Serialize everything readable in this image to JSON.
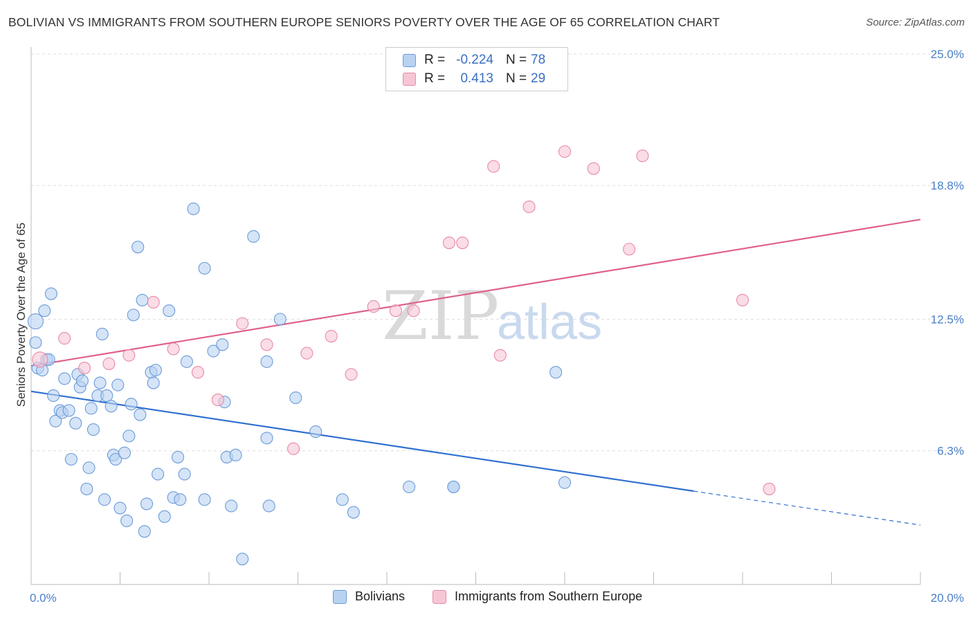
{
  "title": "BOLIVIAN VS IMMIGRANTS FROM SOUTHERN EUROPE SENIORS POVERTY OVER THE AGE OF 65 CORRELATION CHART",
  "source": "Source: ZipAtlas.com",
  "watermark": {
    "zip": "ZIP",
    "atlas": "atlas"
  },
  "colors": {
    "blue_fill": "#b9d2f2",
    "blue_stroke": "#6b9bd8",
    "blue_line": "#2f6fd0",
    "pink_fill": "#f7c6d5",
    "pink_stroke": "#e88aa8",
    "pink_line": "#e0608a",
    "axis_text": "#4a7fc8"
  },
  "legend": {
    "rows": [
      {
        "r_label": "R =",
        "r_value": "-0.224",
        "n_label": "N =",
        "n_value": "78"
      },
      {
        "r_label": "R =",
        "r_value": "0.413",
        "n_label": "N =",
        "n_value": "29"
      }
    ]
  },
  "bottom_legend": {
    "items": [
      "Bolivians",
      "Immigrants from Southern Europe"
    ]
  },
  "chart_data": {
    "type": "scatter",
    "title": "BOLIVIAN VS IMMIGRANTS FROM SOUTHERN EUROPE SENIORS POVERTY OVER THE AGE OF 65 CORRELATION CHART",
    "xlabel": "",
    "ylabel": "Seniors Poverty Over the Age of 65",
    "xlim": [
      0,
      20
    ],
    "ylim": [
      0,
      25
    ],
    "x_tick_labels": [
      "0.0%",
      "20.0%"
    ],
    "y_ticks": [
      6.3,
      12.5,
      18.8,
      25.0
    ],
    "y_tick_labels": [
      "6.3%",
      "12.5%",
      "18.8%",
      "25.0%"
    ],
    "grid": true,
    "series": [
      {
        "name": "Bolivians",
        "r": -0.224,
        "n": 78,
        "trend": {
          "x0": 0,
          "y0": 9.1,
          "x1": 14.9,
          "y1": 4.4,
          "dash_to_x": 20,
          "dash_to_y": 2.8
        },
        "points": [
          [
            0.1,
            12.4
          ],
          [
            0.1,
            11.4
          ],
          [
            0.15,
            10.2
          ],
          [
            0.25,
            10.1
          ],
          [
            0.35,
            10.6
          ],
          [
            0.4,
            10.6
          ],
          [
            0.3,
            12.9
          ],
          [
            0.45,
            13.7
          ],
          [
            0.5,
            8.9
          ],
          [
            0.55,
            7.7
          ],
          [
            0.65,
            8.2
          ],
          [
            0.7,
            8.1
          ],
          [
            0.75,
            9.7
          ],
          [
            0.85,
            8.2
          ],
          [
            0.9,
            5.9
          ],
          [
            1.0,
            7.6
          ],
          [
            1.05,
            9.9
          ],
          [
            1.1,
            9.3
          ],
          [
            1.15,
            9.6
          ],
          [
            1.25,
            4.5
          ],
          [
            1.3,
            5.5
          ],
          [
            1.35,
            8.3
          ],
          [
            1.4,
            7.3
          ],
          [
            1.5,
            8.9
          ],
          [
            1.55,
            9.5
          ],
          [
            1.6,
            11.8
          ],
          [
            1.65,
            4.0
          ],
          [
            1.7,
            8.9
          ],
          [
            1.8,
            8.4
          ],
          [
            1.85,
            6.1
          ],
          [
            1.9,
            5.9
          ],
          [
            1.95,
            9.4
          ],
          [
            2.0,
            3.6
          ],
          [
            2.1,
            6.2
          ],
          [
            2.15,
            3.0
          ],
          [
            2.2,
            7.0
          ],
          [
            2.25,
            8.5
          ],
          [
            2.3,
            12.7
          ],
          [
            2.4,
            15.9
          ],
          [
            2.45,
            8.0
          ],
          [
            2.5,
            13.4
          ],
          [
            2.55,
            2.5
          ],
          [
            2.6,
            3.8
          ],
          [
            2.7,
            10.0
          ],
          [
            2.75,
            9.5
          ],
          [
            2.8,
            10.1
          ],
          [
            2.85,
            5.2
          ],
          [
            3.0,
            3.2
          ],
          [
            3.1,
            12.9
          ],
          [
            3.2,
            4.1
          ],
          [
            3.3,
            6.0
          ],
          [
            3.35,
            4.0
          ],
          [
            3.45,
            5.2
          ],
          [
            3.5,
            10.5
          ],
          [
            3.65,
            17.7
          ],
          [
            3.9,
            14.9
          ],
          [
            3.9,
            4.0
          ],
          [
            4.1,
            11.0
          ],
          [
            4.3,
            11.3
          ],
          [
            4.35,
            8.6
          ],
          [
            4.4,
            6.0
          ],
          [
            4.5,
            3.7
          ],
          [
            4.6,
            6.1
          ],
          [
            4.75,
            1.2
          ],
          [
            5.0,
            16.4
          ],
          [
            5.3,
            6.9
          ],
          [
            5.3,
            10.5
          ],
          [
            5.35,
            3.7
          ],
          [
            5.6,
            12.5
          ],
          [
            5.95,
            8.8
          ],
          [
            6.4,
            7.2
          ],
          [
            7.0,
            4.0
          ],
          [
            7.25,
            3.4
          ],
          [
            8.5,
            4.6
          ],
          [
            9.5,
            4.6
          ],
          [
            11.8,
            10.0
          ],
          [
            12.0,
            4.8
          ],
          [
            9.5,
            4.6
          ]
        ]
      },
      {
        "name": "Immigrants from Southern Europe",
        "r": 0.413,
        "n": 29,
        "trend": {
          "x0": 0,
          "y0": 10.3,
          "x1": 20,
          "y1": 17.2
        },
        "points": [
          [
            0.2,
            10.6
          ],
          [
            0.75,
            11.6
          ],
          [
            1.2,
            10.2
          ],
          [
            1.75,
            10.4
          ],
          [
            2.2,
            10.8
          ],
          [
            2.75,
            13.3
          ],
          [
            3.2,
            11.1
          ],
          [
            3.75,
            10.0
          ],
          [
            4.2,
            8.7
          ],
          [
            4.75,
            12.3
          ],
          [
            5.3,
            11.3
          ],
          [
            5.9,
            6.4
          ],
          [
            6.2,
            10.9
          ],
          [
            6.75,
            11.7
          ],
          [
            7.2,
            9.9
          ],
          [
            7.7,
            13.1
          ],
          [
            8.2,
            12.9
          ],
          [
            8.6,
            12.9
          ],
          [
            9.4,
            16.1
          ],
          [
            9.7,
            16.1
          ],
          [
            10.4,
            19.7
          ],
          [
            10.55,
            10.8
          ],
          [
            11.2,
            17.8
          ],
          [
            12.0,
            20.4
          ],
          [
            12.65,
            19.6
          ],
          [
            13.45,
            15.8
          ],
          [
            13.75,
            20.2
          ],
          [
            16.0,
            13.4
          ],
          [
            16.6,
            4.5
          ]
        ]
      }
    ]
  }
}
